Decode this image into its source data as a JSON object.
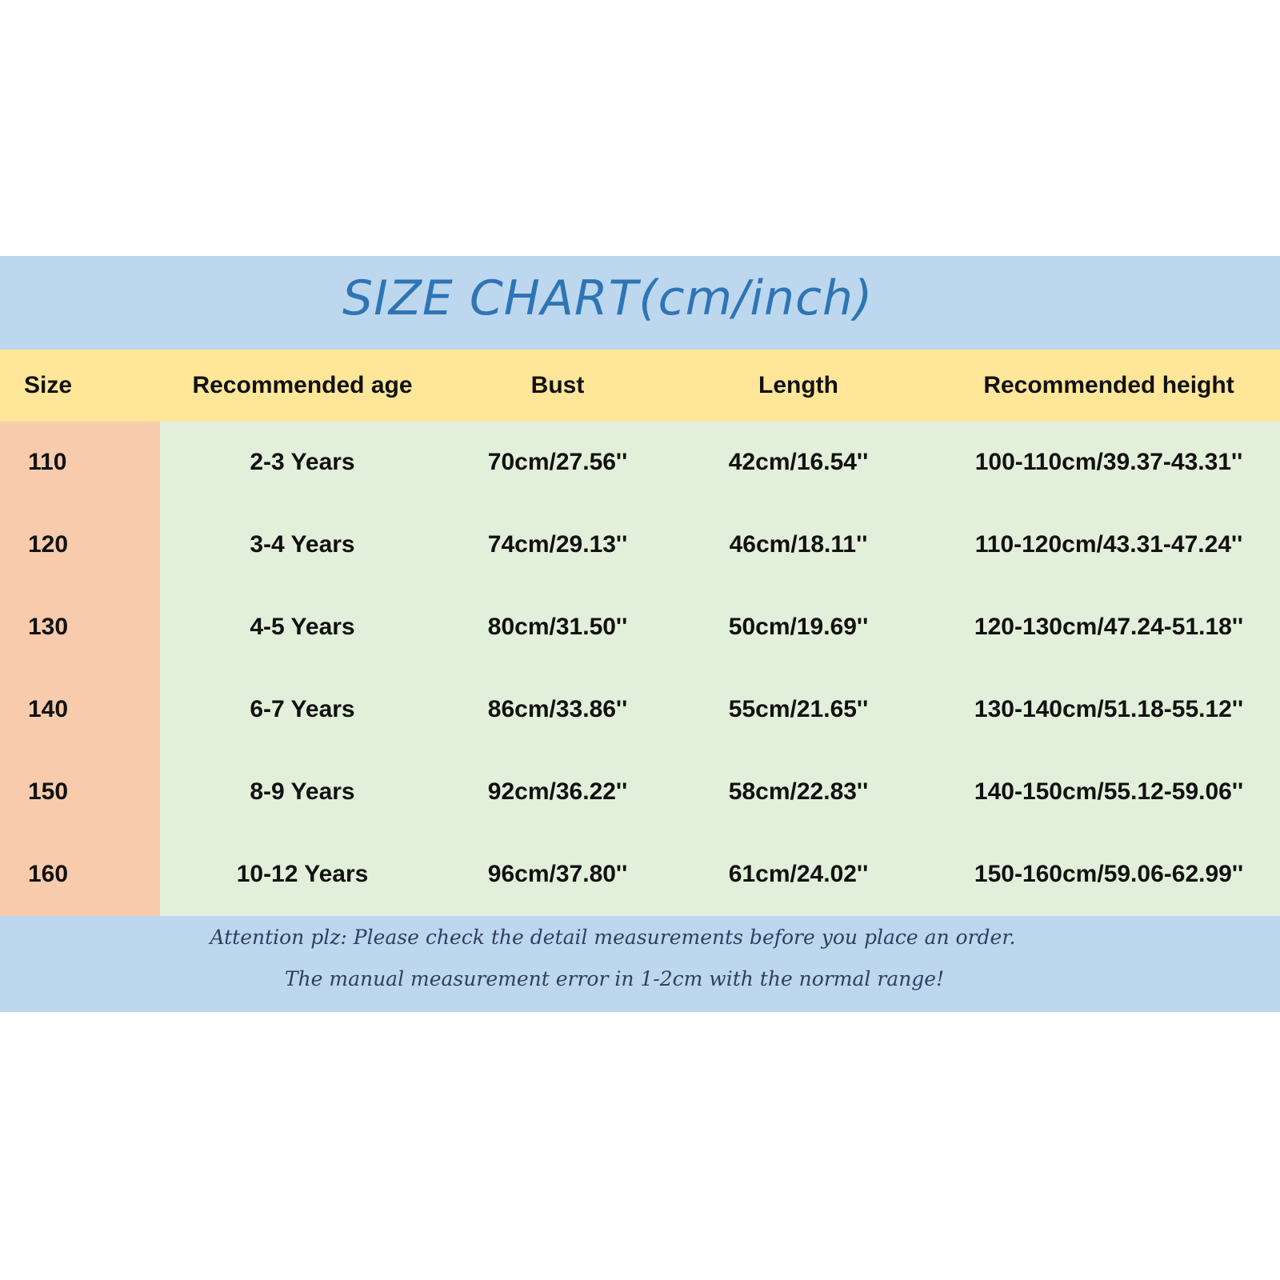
{
  "title": "SIZE CHART(cm/inch)",
  "colors": {
    "title_band": "#bdd7ee",
    "header": "#ffe699",
    "size_column": "#f8cbad",
    "body": "#e2efda",
    "title_text": "#2e75b6"
  },
  "table": {
    "headers": [
      "Size",
      "Recommended age",
      "Bust",
      "Length",
      "Recommended height"
    ],
    "rows": [
      [
        "110",
        "2-3 Years",
        "70cm/27.56''",
        "42cm/16.54''",
        "100-110cm/39.37-43.31''"
      ],
      [
        "120",
        "3-4 Years",
        "74cm/29.13''",
        "46cm/18.11''",
        "110-120cm/43.31-47.24''"
      ],
      [
        "130",
        "4-5 Years",
        "80cm/31.50''",
        "50cm/19.69''",
        "120-130cm/47.24-51.18''"
      ],
      [
        "140",
        "6-7 Years",
        "86cm/33.86''",
        "55cm/21.65''",
        "130-140cm/51.18-55.12''"
      ],
      [
        "150",
        "8-9 Years",
        "92cm/36.22''",
        "58cm/22.83''",
        "140-150cm/55.12-59.06''"
      ],
      [
        "160",
        "10-12 Years",
        "96cm/37.80''",
        "61cm/24.02''",
        "150-160cm/59.06-62.99''"
      ]
    ]
  },
  "notes": [
    "Attention plz:  Please check the detail measurements before you place an order.",
    "The manual measurement error in 1-2cm with the normal range!"
  ]
}
